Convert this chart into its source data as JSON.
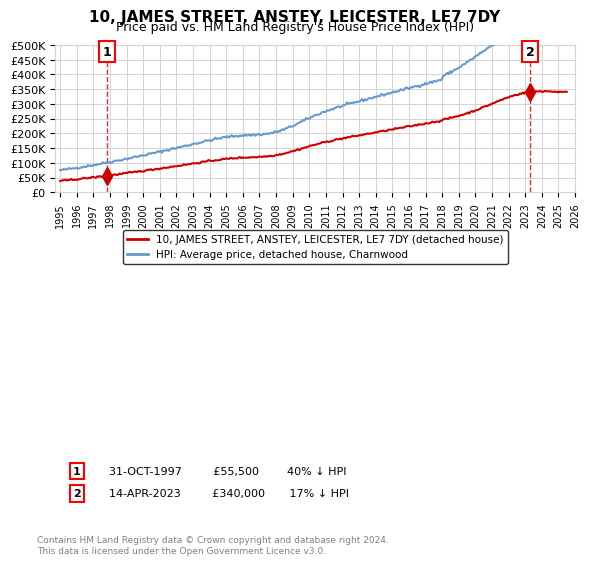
{
  "title": "10, JAMES STREET, ANSTEY, LEICESTER, LE7 7DY",
  "subtitle": "Price paid vs. HM Land Registry's House Price Index (HPI)",
  "legend_line1": "10, JAMES STREET, ANSTEY, LEICESTER, LE7 7DY (detached house)",
  "legend_line2": "HPI: Average price, detached house, Charnwood",
  "note1": "1    31-OCT-1997         £55,500        40% ↓ HPI",
  "note2": "2    14-APR-2023         £340,000       17% ↓ HPI",
  "footer": "Contains HM Land Registry data © Crown copyright and database right 2024.\nThis data is licensed under the Open Government Licence v3.0.",
  "sale_color": "#cc0000",
  "hpi_color": "#6699cc",
  "marker_color": "#cc0000",
  "dashed_color": "#cc0000",
  "ylim": [
    0,
    500000
  ],
  "yticks": [
    0,
    50000,
    100000,
    150000,
    200000,
    250000,
    300000,
    350000,
    400000,
    450000,
    500000
  ],
  "sale1_x": 1997.83,
  "sale1_y": 55500,
  "sale2_x": 2023.29,
  "sale2_y": 340000,
  "xmin": 1995,
  "xmax": 2026
}
